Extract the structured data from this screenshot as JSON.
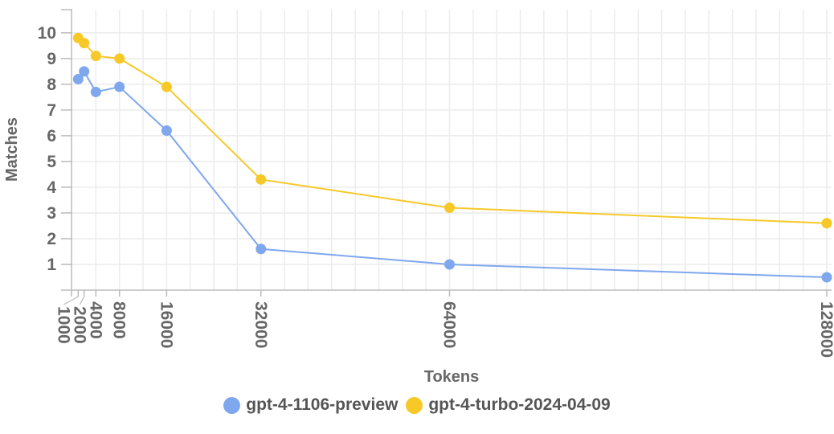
{
  "chart_data": {
    "type": "line",
    "title": "",
    "xlabel": "Tokens",
    "ylabel": "Matches",
    "xlim": [
      0,
      128000
    ],
    "ylim": [
      0,
      10.9
    ],
    "x_ticks": [
      1000,
      2000,
      4000,
      8000,
      16000,
      32000,
      64000,
      128000
    ],
    "x_tick_labels": [
      "1000",
      "2000",
      "4000",
      "8000",
      "16000",
      "32000",
      "64000",
      "128000"
    ],
    "y_ticks": [
      1,
      2,
      3,
      4,
      5,
      6,
      7,
      8,
      9,
      10
    ],
    "y_tick_labels": [
      "1",
      "2",
      "3",
      "4",
      "5",
      "6",
      "7",
      "8",
      "9",
      "10"
    ],
    "grid": true,
    "legend_position": "bottom",
    "x": [
      1000,
      2000,
      4000,
      8000,
      16000,
      32000,
      64000,
      128000
    ],
    "series": [
      {
        "name": "gpt-4-1106-preview",
        "color": "#7fa7ee",
        "values": [
          8.2,
          8.5,
          7.7,
          7.9,
          6.2,
          1.6,
          1.0,
          0.5
        ]
      },
      {
        "name": "gpt-4-turbo-2024-04-09",
        "color": "#f6c928",
        "values": [
          9.8,
          9.6,
          9.1,
          9.0,
          7.9,
          4.3,
          3.2,
          2.6
        ]
      }
    ]
  }
}
